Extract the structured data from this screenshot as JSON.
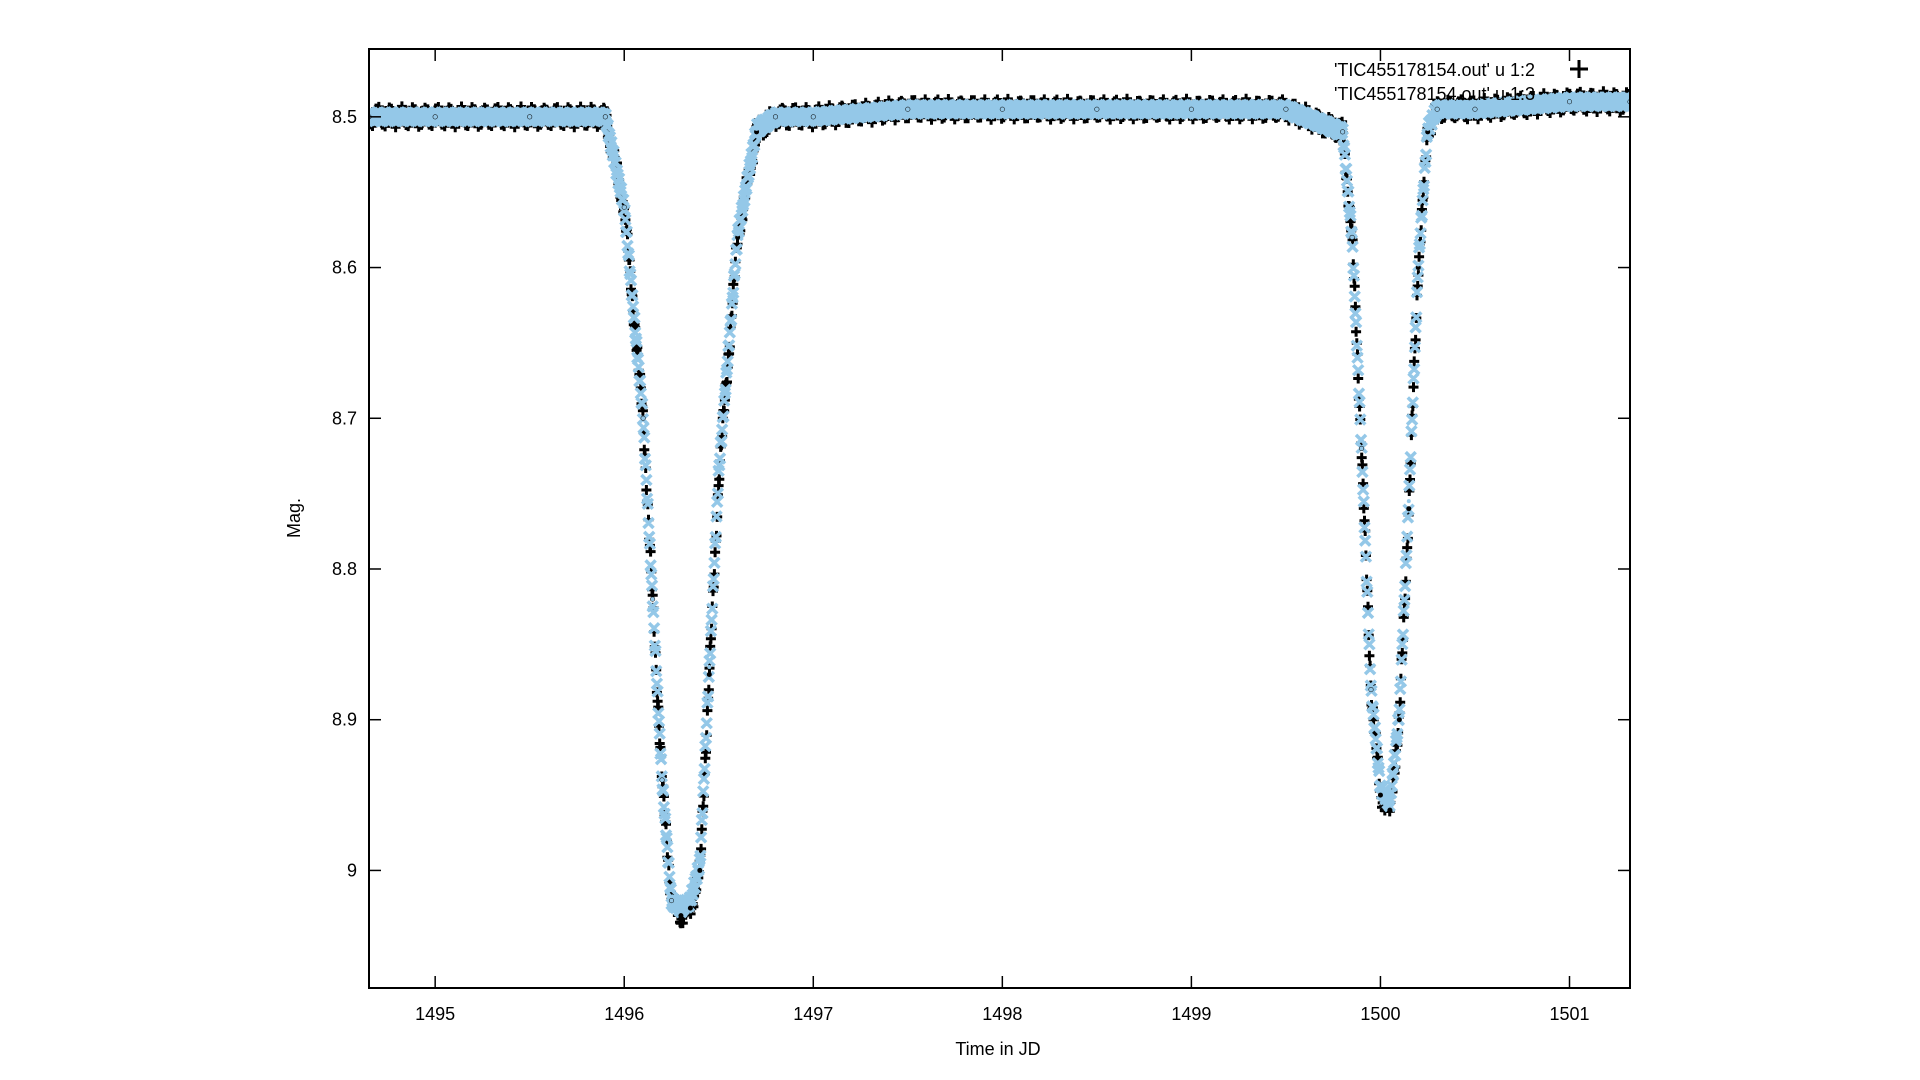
{
  "chart_data": {
    "type": "scatter",
    "title": "",
    "xlabel": "Time in JD",
    "ylabel": "Mag.",
    "xlim": [
      1494.65,
      1501.32
    ],
    "ylim": [
      9.078,
      8.455
    ],
    "y_axis_inverted": true,
    "grid": false,
    "legend_placement": "top-right",
    "x_ticks": [
      1495,
      1496,
      1497,
      1498,
      1499,
      1500,
      1501
    ],
    "y_ticks": [
      8.5,
      8.6,
      8.7,
      8.8,
      8.9,
      9
    ],
    "x_tick_labels": [
      "1495",
      "1496",
      "1497",
      "1498",
      "1499",
      "1500",
      "1501"
    ],
    "y_tick_labels": [
      "8.5",
      "8.6",
      "8.7",
      "8.8",
      "8.9",
      "9"
    ],
    "colors": {
      "observed": "#000000",
      "model": "#94c8e8",
      "axes": "#000000"
    },
    "series": [
      {
        "name": "'TIC455178154.out' u 1:2",
        "marker": "plus",
        "color": "#000000",
        "x": [
          1494.65,
          1495.0,
          1495.5,
          1495.9,
          1496.0,
          1496.1,
          1496.15,
          1496.2,
          1496.25,
          1496.3,
          1496.35,
          1496.4,
          1496.45,
          1496.5,
          1496.6,
          1496.7,
          1496.8,
          1497.0,
          1497.5,
          1498.0,
          1498.5,
          1499.0,
          1499.5,
          1499.8,
          1499.85,
          1499.9,
          1499.95,
          1500.0,
          1500.05,
          1500.1,
          1500.15,
          1500.2,
          1500.25,
          1500.3,
          1500.5,
          1501.0,
          1501.32
        ],
        "y": [
          8.5,
          8.5,
          8.5,
          8.5,
          8.56,
          8.7,
          8.82,
          8.94,
          9.02,
          9.03,
          9.025,
          9.0,
          8.87,
          8.74,
          8.58,
          8.51,
          8.5,
          8.5,
          8.495,
          8.495,
          8.495,
          8.495,
          8.495,
          8.51,
          8.58,
          8.72,
          8.88,
          8.95,
          8.96,
          8.9,
          8.76,
          8.6,
          8.51,
          8.495,
          8.495,
          8.49,
          8.49
        ]
      },
      {
        "name": "'TIC455178154.out' u 1:3",
        "marker": "cross",
        "color": "#94c8e8",
        "x": [
          1494.65,
          1495.0,
          1495.5,
          1495.9,
          1496.0,
          1496.1,
          1496.15,
          1496.2,
          1496.25,
          1496.3,
          1496.35,
          1496.4,
          1496.45,
          1496.5,
          1496.6,
          1496.7,
          1496.8,
          1497.0,
          1497.5,
          1498.0,
          1498.5,
          1499.0,
          1499.5,
          1499.8,
          1499.85,
          1499.9,
          1499.95,
          1500.0,
          1500.05,
          1500.1,
          1500.15,
          1500.2,
          1500.25,
          1500.3,
          1500.5,
          1501.0,
          1501.32
        ],
        "y": [
          8.5,
          8.5,
          8.5,
          8.5,
          8.56,
          8.7,
          8.82,
          8.94,
          9.02,
          9.025,
          9.02,
          8.995,
          8.865,
          8.735,
          8.578,
          8.508,
          8.5,
          8.5,
          8.495,
          8.495,
          8.495,
          8.495,
          8.495,
          8.51,
          8.58,
          8.72,
          8.88,
          8.945,
          8.955,
          8.895,
          8.755,
          8.598,
          8.508,
          8.495,
          8.495,
          8.49,
          8.49
        ]
      }
    ]
  }
}
